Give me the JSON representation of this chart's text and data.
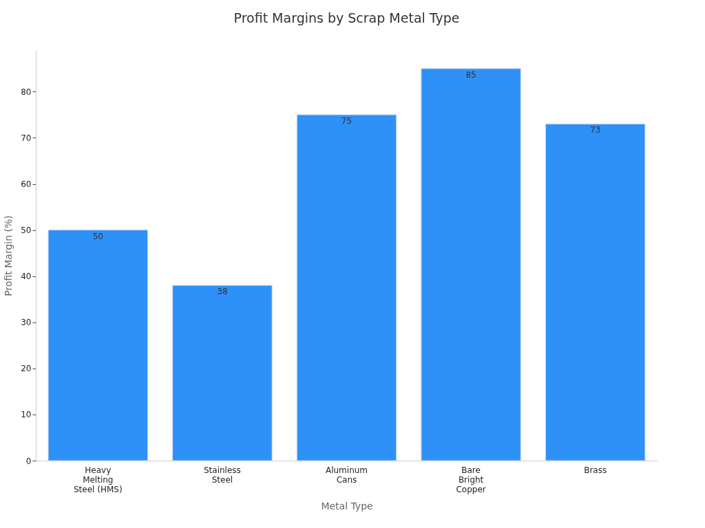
{
  "chart_data": {
    "type": "bar",
    "title": "Profit Margins by Scrap Metal Type",
    "xlabel": "Metal Type",
    "ylabel": "Profit Margin (%)",
    "categories": [
      "Heavy Melting Steel (HMS)",
      "Stainless Steel",
      "Aluminum Cans",
      "Bare Bright Copper",
      "Brass"
    ],
    "values": [
      50,
      38,
      75,
      85,
      73
    ],
    "color": "#2e91f8",
    "ylim": [
      0,
      89
    ],
    "yticks": [
      0,
      10,
      20,
      30,
      40,
      50,
      60,
      70,
      80
    ],
    "grid": false,
    "data_labels": true
  }
}
